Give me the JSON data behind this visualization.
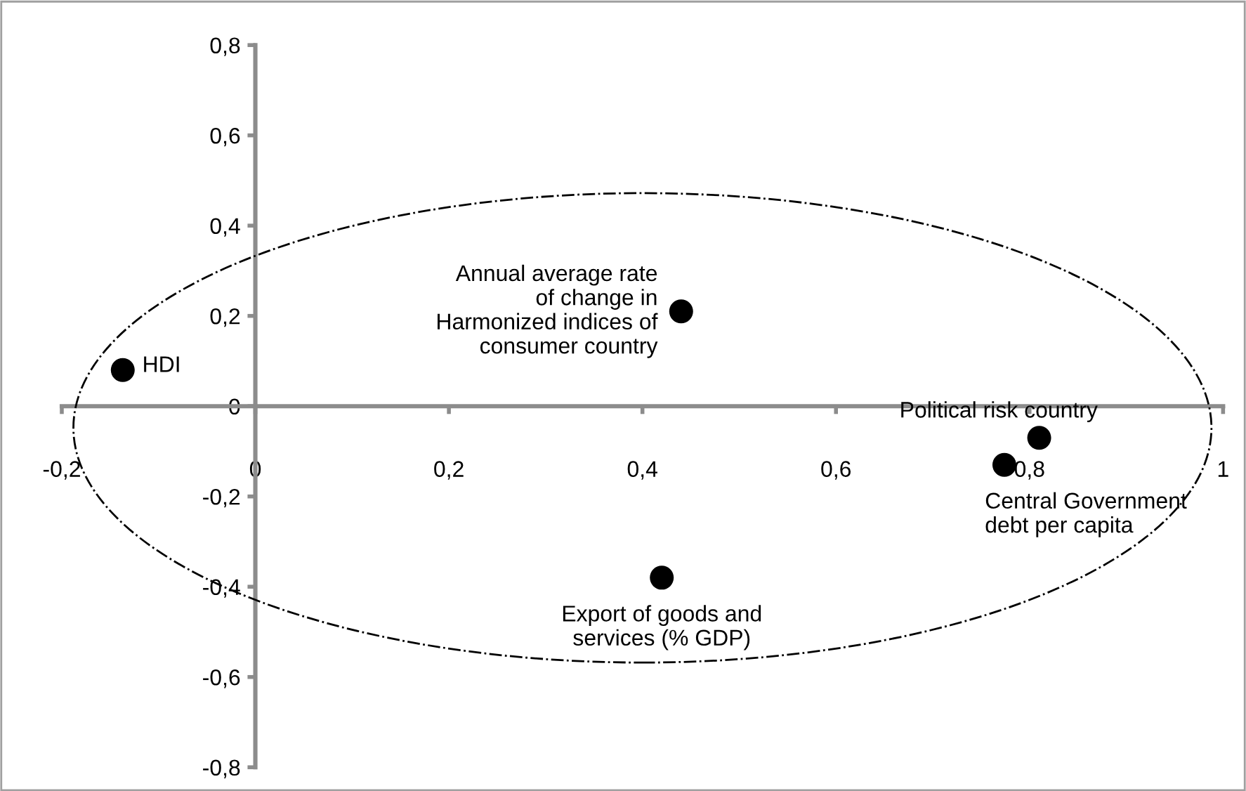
{
  "chart_data": {
    "type": "scatter",
    "x": [
      -0.137,
      0.44,
      0.81,
      0.774,
      0.42
    ],
    "values": [
      0.08,
      0.21,
      -0.07,
      -0.13,
      -0.38
    ],
    "color": "#000000",
    "marker": "circle",
    "xlim": [
      -0.2,
      1
    ],
    "ylim": [
      -0.8,
      0.8
    ],
    "xticks": [
      {
        "value": -0.2,
        "label": "-0,2"
      },
      0,
      {
        "value": 0.2,
        "label": "0,2"
      },
      {
        "value": 0.4,
        "label": "0,4"
      },
      {
        "value": 0.6,
        "label": "0,6"
      },
      {
        "value": 0.8,
        "label": "0,8"
      },
      1
    ],
    "yticks": [
      {
        "value": -0.8,
        "label": "-0,8"
      },
      {
        "value": -0.6,
        "label": "-0,6"
      },
      {
        "value": -0.4,
        "label": "-0,4"
      },
      {
        "value": -0.2,
        "label": "-0,2"
      },
      0,
      {
        "value": 0.2,
        "label": "0,2"
      },
      {
        "value": 0.4,
        "label": "0,4"
      },
      {
        "value": 0.6,
        "label": "0,6"
      },
      {
        "value": 0.8,
        "label": "0,8"
      }
    ],
    "grid": false,
    "legend": false,
    "annotations": [
      {
        "text": "HDI",
        "x": -0.137,
        "y": 0.08
      },
      {
        "text": "Annual average rate\nof change in\nHarmonized indices of\nconsumer country",
        "x": 0.44,
        "y": 0.21
      },
      {
        "text": "Political risk country",
        "x": 0.81,
        "y": -0.07
      },
      {
        "text": "Central Government\ndebt per capita",
        "x": 0.774,
        "y": -0.13
      },
      {
        "text": "Export of goods and\nservices (% GDP)",
        "x": 0.42,
        "y": -0.38
      }
    ]
  }
}
